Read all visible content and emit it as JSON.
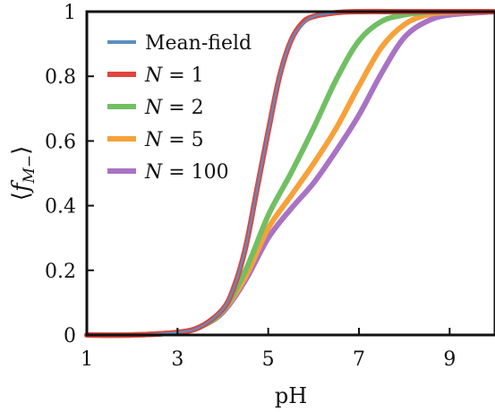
{
  "chart_data": {
    "type": "line",
    "xlabel": "pH",
    "ylabel": "⟨f_{M−}⟩",
    "xlim": [
      1,
      10
    ],
    "ylim": [
      0,
      1
    ],
    "xticks": [
      1,
      3,
      5,
      7,
      9
    ],
    "yticks": [
      0,
      0.2,
      0.4,
      0.6,
      0.8,
      1
    ],
    "ytick_labels": [
      "0",
      "0.2",
      "0.4",
      "0.6",
      "0.8",
      "1"
    ],
    "grid": false,
    "legend_placement": "top-left",
    "series": [
      {
        "name": "Mean-field",
        "color": "#5a8fc2",
        "x": [
          1,
          2,
          3,
          3.5,
          4,
          4.25,
          4.5,
          4.75,
          5,
          5.25,
          5.5,
          5.75,
          6,
          6.5,
          7,
          8,
          9,
          10
        ],
        "y": [
          0.0,
          0.0,
          0.008,
          0.025,
          0.08,
          0.15,
          0.27,
          0.45,
          0.63,
          0.8,
          0.91,
          0.96,
          0.985,
          0.997,
          1.0,
          1.0,
          1.0,
          1.0
        ]
      },
      {
        "name": "N = 1",
        "color": "#e0453f",
        "x": [
          1,
          2,
          3,
          3.5,
          4,
          4.25,
          4.5,
          4.75,
          5,
          5.25,
          5.5,
          5.75,
          6,
          6.5,
          7,
          8,
          9,
          10
        ],
        "y": [
          0.0,
          0.0,
          0.008,
          0.025,
          0.08,
          0.15,
          0.27,
          0.45,
          0.63,
          0.8,
          0.91,
          0.965,
          0.985,
          0.997,
          1.0,
          1.0,
          1.0,
          1.0
        ]
      },
      {
        "name": "N = 2",
        "color": "#71bf63",
        "x": [
          1,
          2,
          3,
          3.5,
          4,
          4.5,
          5,
          5.5,
          6,
          6.5,
          7,
          7.5,
          8,
          8.5,
          9,
          10
        ],
        "y": [
          0.0,
          0.0,
          0.008,
          0.025,
          0.075,
          0.2,
          0.37,
          0.5,
          0.64,
          0.79,
          0.91,
          0.97,
          0.99,
          0.998,
          1.0,
          1.0
        ]
      },
      {
        "name": "N = 5",
        "color": "#f7a13a",
        "x": [
          1,
          2,
          3,
          3.5,
          4,
          4.5,
          5,
          5.5,
          6,
          6.5,
          7,
          7.5,
          8,
          8.5,
          9,
          10
        ],
        "y": [
          0.0,
          0.0,
          0.008,
          0.025,
          0.075,
          0.18,
          0.33,
          0.43,
          0.53,
          0.64,
          0.77,
          0.89,
          0.96,
          0.99,
          0.998,
          1.0
        ]
      },
      {
        "name": "N = 100",
        "color": "#a873c4",
        "x": [
          1,
          2,
          3,
          3.5,
          4,
          4.5,
          5,
          5.5,
          6,
          6.5,
          7,
          7.5,
          8,
          8.5,
          9,
          10
        ],
        "y": [
          0.0,
          0.0,
          0.008,
          0.025,
          0.07,
          0.17,
          0.3,
          0.39,
          0.47,
          0.57,
          0.68,
          0.81,
          0.92,
          0.97,
          0.99,
          1.0
        ]
      }
    ]
  }
}
